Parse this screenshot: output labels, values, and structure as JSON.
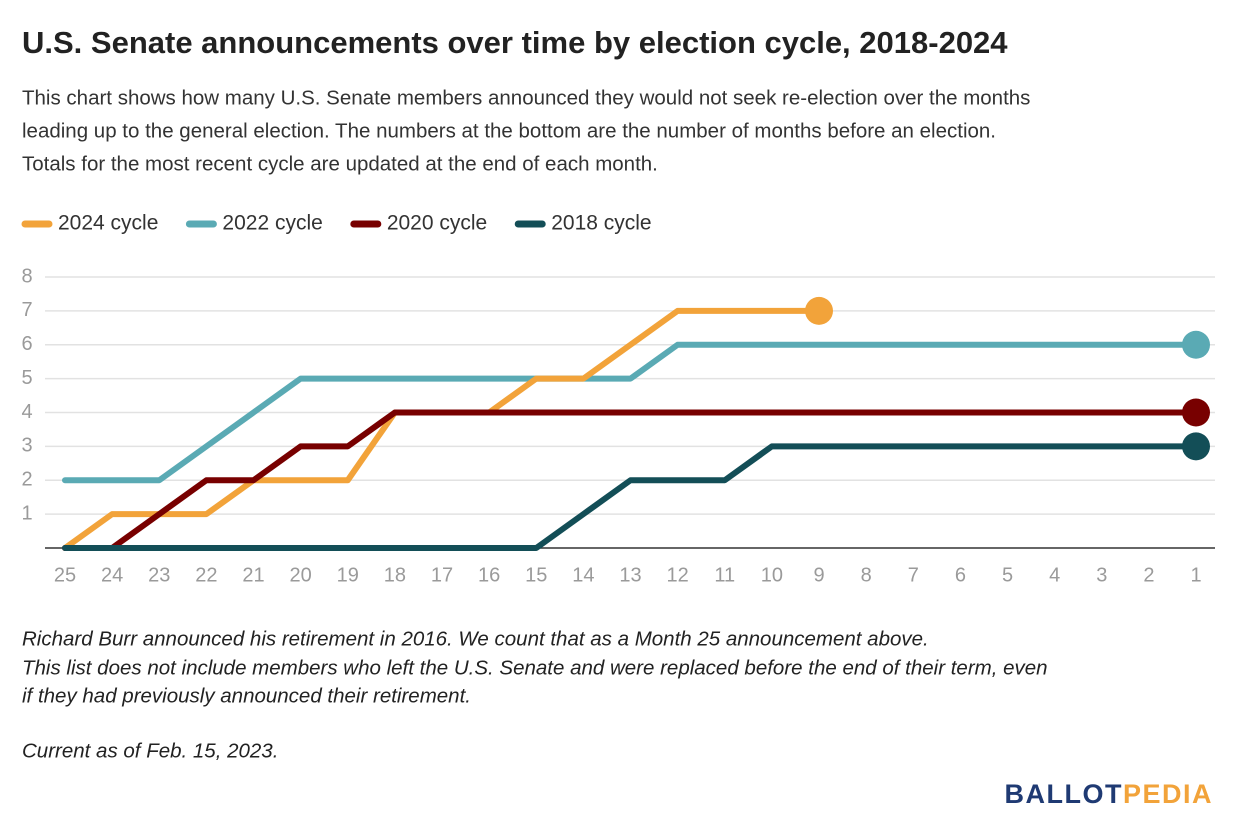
{
  "chart_data": {
    "type": "line",
    "title": "U.S. Senate announcements over time by election cycle, 2018-2024",
    "subtitle": [
      "This chart shows how many U.S. Senate members announced they would not seek re-election over the months",
      "leading up to the general election. The numbers at the bottom are the number of months before an election.",
      "Totals for the most recent cycle are updated at the end of each month."
    ],
    "categories": [
      "25",
      "24",
      "23",
      "22",
      "21",
      "20",
      "19",
      "18",
      "17",
      "16",
      "15",
      "14",
      "13",
      "12",
      "11",
      "10",
      "9",
      "8",
      "7",
      "6",
      "5",
      "4",
      "3",
      "2",
      "1"
    ],
    "series": [
      {
        "name": "2024 cycle",
        "color": "#f2a33a",
        "values": [
          0,
          1,
          1,
          1,
          2,
          2,
          2,
          4,
          4,
          4,
          5,
          5,
          6,
          7,
          7,
          7,
          7,
          null,
          null,
          null,
          null,
          null,
          null,
          null,
          null
        ]
      },
      {
        "name": "2022 cycle",
        "color": "#5aaab4",
        "values": [
          2,
          2,
          2,
          3,
          4,
          5,
          5,
          5,
          5,
          5,
          5,
          5,
          5,
          6,
          6,
          6,
          6,
          6,
          6,
          6,
          6,
          6,
          6,
          6,
          6
        ]
      },
      {
        "name": "2020 cycle",
        "color": "#780000",
        "values": [
          0,
          0,
          1,
          2,
          2,
          3,
          3,
          4,
          4,
          4,
          4,
          4,
          4,
          4,
          4,
          4,
          4,
          4,
          4,
          4,
          4,
          4,
          4,
          4,
          4
        ]
      },
      {
        "name": "2018 cycle",
        "color": "#134e57",
        "values": [
          0,
          0,
          0,
          0,
          0,
          0,
          0,
          0,
          0,
          0,
          0,
          1,
          2,
          2,
          2,
          3,
          3,
          3,
          3,
          3,
          3,
          3,
          3,
          3,
          3
        ]
      }
    ],
    "ylim": [
      0,
      8
    ],
    "yticks": [
      1,
      2,
      3,
      4,
      5,
      6,
      7,
      8
    ],
    "grid": true,
    "legend": "top-left",
    "notes": [
      "Richard Burr announced his retirement in 2016. We count that as a Month 25 announcement above.",
      "This list does not include members who left the U.S. Senate and were replaced before the end of their term, even",
      "if they had previously announced their retirement.",
      "Current as of Feb. 15, 2023."
    ],
    "logo": {
      "part1": "BALLOT",
      "part2": "PEDIA"
    }
  }
}
